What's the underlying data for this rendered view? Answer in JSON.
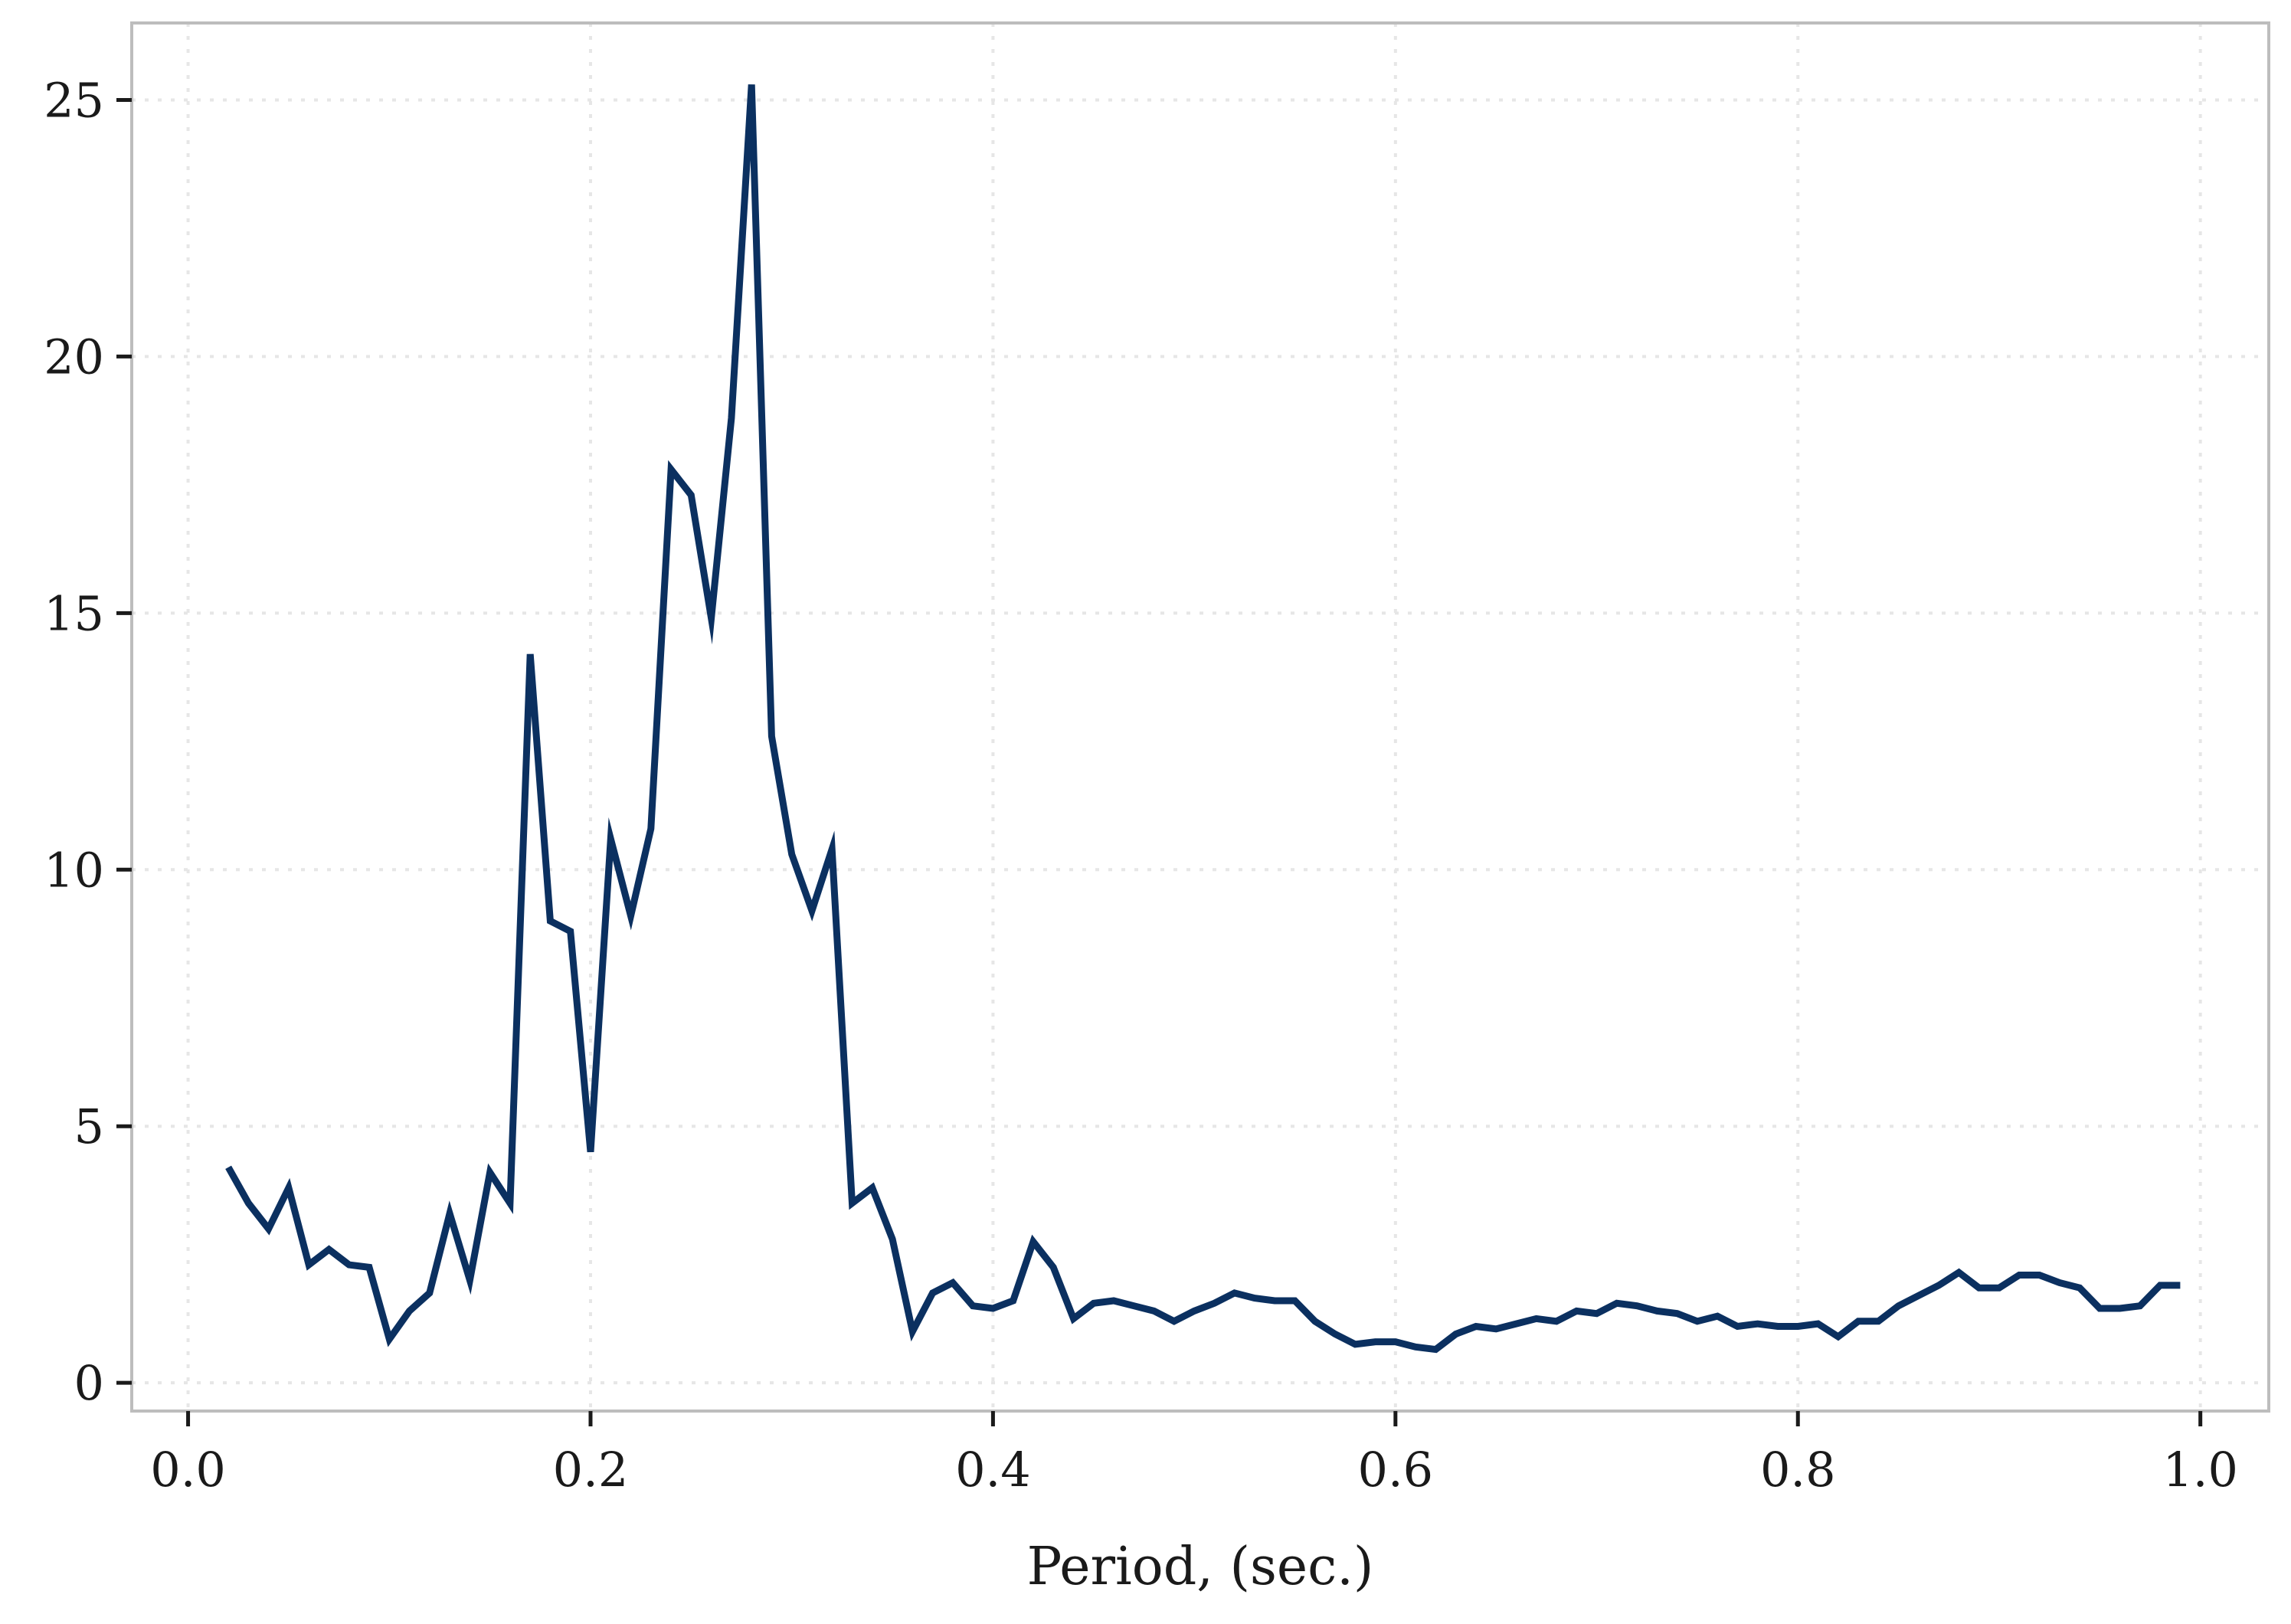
{
  "chart_data": {
    "type": "line",
    "title": "",
    "xlabel": "Period, (sec.)",
    "ylabel": "",
    "xlim": [
      -0.028,
      1.034
    ],
    "ylim": [
      -0.55,
      26.5
    ],
    "xticks": [
      0.0,
      0.2,
      0.4,
      0.6,
      0.8,
      1.0
    ],
    "xtick_labels": [
      "0.0",
      "0.2",
      "0.4",
      "0.6",
      "0.8",
      "1.0"
    ],
    "yticks": [
      0,
      5,
      10,
      15,
      20,
      25
    ],
    "ytick_labels": [
      "0",
      "5",
      "10",
      "15",
      "20",
      "25"
    ],
    "grid": true,
    "legend": "none",
    "series": [
      {
        "color": "#0b3060",
        "x": [
          0.02,
          0.03,
          0.04,
          0.05,
          0.06,
          0.07,
          0.08,
          0.09,
          0.1,
          0.11,
          0.12,
          0.13,
          0.14,
          0.15,
          0.16,
          0.17,
          0.18,
          0.19,
          0.2,
          0.21,
          0.22,
          0.23,
          0.24,
          0.25,
          0.26,
          0.27,
          0.28,
          0.29,
          0.3,
          0.31,
          0.32,
          0.33,
          0.34,
          0.35,
          0.36,
          0.37,
          0.38,
          0.39,
          0.4,
          0.41,
          0.42,
          0.43,
          0.44,
          0.45,
          0.46,
          0.47,
          0.48,
          0.49,
          0.5,
          0.51,
          0.52,
          0.53,
          0.54,
          0.55,
          0.56,
          0.57,
          0.58,
          0.59,
          0.6,
          0.61,
          0.62,
          0.63,
          0.64,
          0.65,
          0.66,
          0.67,
          0.68,
          0.69,
          0.7,
          0.71,
          0.72,
          0.73,
          0.74,
          0.75,
          0.76,
          0.77,
          0.78,
          0.79,
          0.8,
          0.81,
          0.82,
          0.83,
          0.84,
          0.85,
          0.86,
          0.87,
          0.88,
          0.89,
          0.9,
          0.91,
          0.92,
          0.93,
          0.94,
          0.95,
          0.96,
          0.97,
          0.98,
          0.99
        ],
        "y": [
          4.2,
          3.5,
          3.0,
          3.8,
          2.3,
          2.6,
          2.3,
          2.25,
          0.85,
          1.4,
          1.75,
          3.3,
          2.0,
          4.1,
          3.5,
          14.2,
          9.0,
          8.8,
          4.5,
          10.6,
          9.1,
          10.8,
          17.8,
          17.3,
          14.9,
          18.8,
          25.3,
          12.6,
          10.3,
          9.2,
          10.4,
          3.5,
          3.8,
          2.8,
          1.0,
          1.75,
          1.95,
          1.5,
          1.45,
          1.6,
          2.75,
          2.25,
          1.25,
          1.55,
          1.6,
          1.5,
          1.4,
          1.2,
          1.4,
          1.55,
          1.75,
          1.65,
          1.6,
          1.6,
          1.2,
          0.95,
          0.75,
          0.8,
          0.8,
          0.7,
          0.65,
          0.95,
          1.1,
          1.05,
          1.15,
          1.25,
          1.2,
          1.4,
          1.35,
          1.55,
          1.5,
          1.4,
          1.35,
          1.2,
          1.3,
          1.1,
          1.15,
          1.1,
          1.1,
          1.15,
          0.9,
          1.2,
          1.2,
          1.5,
          1.7,
          1.9,
          2.15,
          1.85,
          1.85,
          2.1,
          2.1,
          1.95,
          1.85,
          1.45,
          1.45,
          1.5,
          1.9,
          1.9
        ]
      }
    ]
  }
}
